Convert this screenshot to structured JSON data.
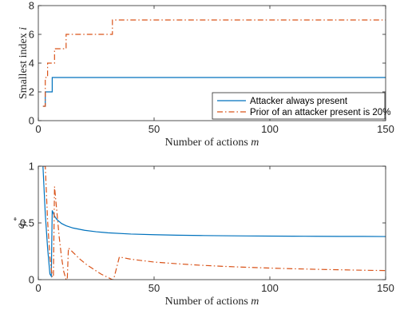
{
  "chart_data": [
    {
      "type": "line",
      "xlabel": "Number of actions m",
      "ylabel": "Smallest index i",
      "xlim": [
        0,
        150
      ],
      "ylim": [
        0,
        8
      ],
      "xticks": [
        "0",
        "50",
        "100",
        "150"
      ],
      "yticks": [
        "0",
        "2",
        "4",
        "6",
        "8"
      ],
      "grid": false,
      "legend_position": "bottom-right",
      "series": [
        {
          "name": "Attacker always present",
          "color": "#0072BD",
          "style": "solid",
          "x": [
            2,
            3,
            3,
            4,
            4,
            5,
            5,
            6,
            6,
            150
          ],
          "y": [
            1,
            1,
            2,
            2,
            2,
            2,
            2,
            2,
            3,
            3
          ]
        },
        {
          "name": "Prior of an attacker present is 20%",
          "color": "#D95319",
          "style": "dashdot",
          "x": [
            2,
            3,
            3,
            4,
            4,
            7,
            7,
            12,
            12,
            32,
            32,
            150
          ],
          "y": [
            1,
            1,
            3,
            3,
            4,
            4,
            5,
            5,
            6,
            6,
            7,
            7
          ]
        }
      ]
    },
    {
      "type": "line",
      "xlabel": "Number of actions m",
      "ylabel": "q_i*",
      "xlim": [
        0,
        150
      ],
      "ylim": [
        0,
        1
      ],
      "xticks": [
        "0",
        "50",
        "100",
        "150"
      ],
      "yticks": [
        "0",
        "0.5",
        "1"
      ],
      "grid": false,
      "series": [
        {
          "name": "Attacker always present",
          "color": "#0072BD",
          "style": "solid",
          "x": [
            2,
            3,
            4,
            5,
            5.6,
            6,
            7,
            8,
            10,
            12,
            15,
            20,
            25,
            30,
            40,
            50,
            60,
            70,
            80,
            90,
            100,
            110,
            120,
            130,
            140,
            150
          ],
          "y": [
            1.0,
            0.58,
            0.28,
            0.05,
            0.03,
            0.61,
            0.56,
            0.53,
            0.495,
            0.475,
            0.455,
            0.435,
            0.422,
            0.413,
            0.402,
            0.396,
            0.392,
            0.389,
            0.387,
            0.385,
            0.384,
            0.383,
            0.382,
            0.381,
            0.381,
            0.38
          ]
        },
        {
          "name": "Prior of an attacker present is 20%",
          "color": "#D95319",
          "style": "dashdot",
          "x": [
            2,
            3,
            4,
            5,
            6,
            6.5,
            7,
            8,
            9,
            10,
            11,
            12,
            12.5,
            13,
            15,
            18,
            21,
            24,
            27,
            30,
            32,
            32.5,
            35,
            40,
            50,
            60,
            70,
            80,
            90,
            100,
            110,
            120,
            130,
            140,
            150
          ],
          "y": [
            1.0,
            1.0,
            0.52,
            0.2,
            0.03,
            0.02,
            0.82,
            0.6,
            0.38,
            0.2,
            0.07,
            0.0,
            0.0,
            0.28,
            0.24,
            0.18,
            0.13,
            0.09,
            0.05,
            0.02,
            0.0,
            0.0,
            0.2,
            0.18,
            0.155,
            0.14,
            0.127,
            0.117,
            0.109,
            0.102,
            0.096,
            0.091,
            0.087,
            0.083,
            0.08
          ]
        }
      ]
    }
  ]
}
